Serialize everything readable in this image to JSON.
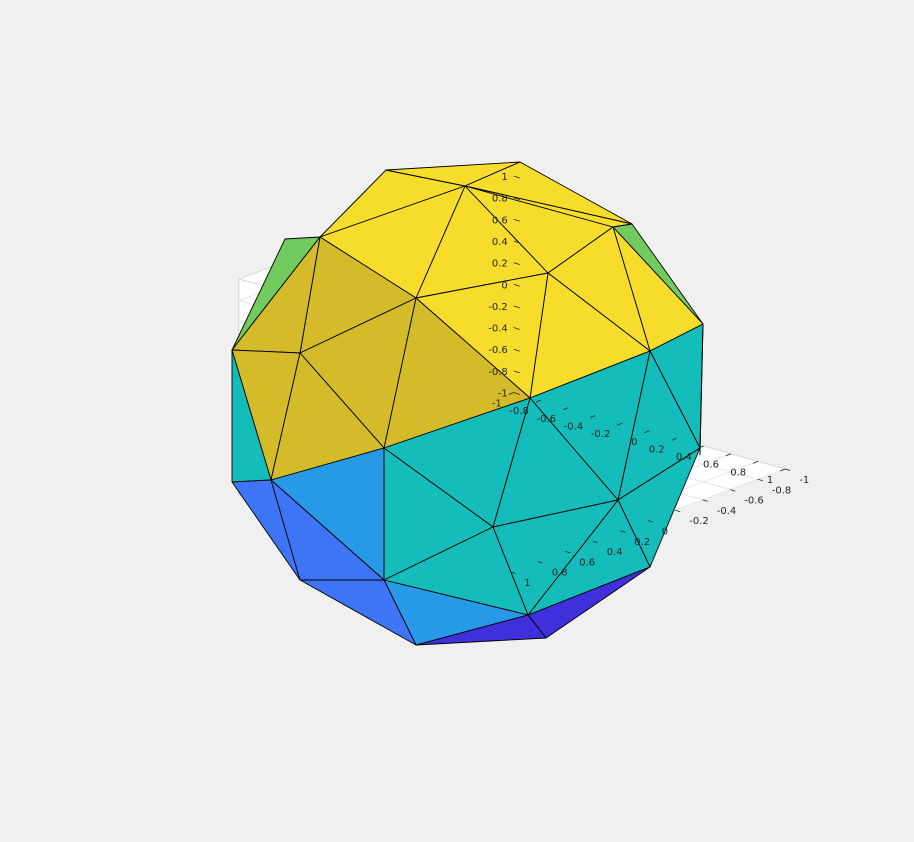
{
  "chart_data": {
    "type": "surface",
    "shape": "geodesic-sphere",
    "colormap": "parula",
    "grid": true,
    "box": true,
    "view": {
      "azimuth": -37.5,
      "elevation": 30
    },
    "xlim": [
      -1,
      1
    ],
    "ylim": [
      -1,
      1
    ],
    "zlim": [
      -1,
      1
    ],
    "x_ticks": [
      "-1",
      "-0.8",
      "-0.6",
      "-0.4",
      "-0.2",
      "0",
      "0.2",
      "0.4",
      "0.6",
      "0.8",
      "1"
    ],
    "y_ticks": [
      "-1",
      "-0.8",
      "-0.6",
      "-0.4",
      "-0.2",
      "0",
      "0.2",
      "0.4",
      "0.6",
      "0.8",
      "1"
    ],
    "z_ticks": [
      "-1",
      "-0.8",
      "-0.6",
      "-0.4",
      "-0.2",
      "0",
      "0.2",
      "0.4",
      "0.6",
      "0.8",
      "1"
    ],
    "face_colors": {
      "z_top": "#f6dd2b",
      "z_upper": "#d4bb2a",
      "z_upper_side": "#72cb5e",
      "z_lower": "#14bdb9",
      "z_low": "#2899e6",
      "z_lower_blue": "#3e75f7",
      "z_bottom": "#4030dc"
    },
    "background": "#f0f0f0",
    "axes_background": "#ffffff"
  }
}
